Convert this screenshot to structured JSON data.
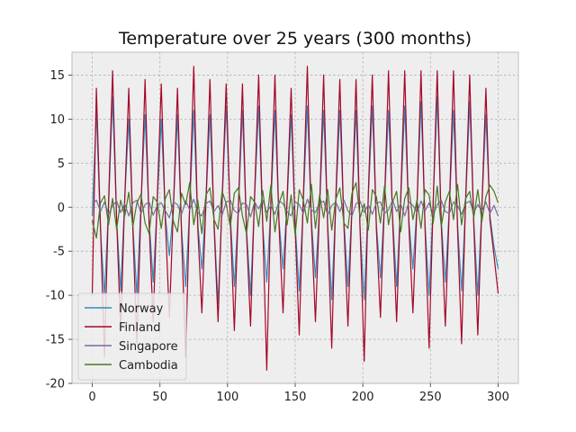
{
  "chart_data": {
    "type": "line",
    "title": "Temperature over 25 years (300 months)",
    "xlabel": "",
    "ylabel": "",
    "xlim": [
      -15,
      315
    ],
    "ylim": [
      -20,
      17.6
    ],
    "x_ticks": [
      0,
      50,
      100,
      150,
      200,
      250,
      300
    ],
    "y_ticks": [
      -20,
      -15,
      -10,
      -5,
      0,
      5,
      10,
      15
    ],
    "grid": true,
    "legend_position": "lower-left",
    "series": [
      {
        "name": "Norway",
        "color": "#348abd",
        "x": [
          0,
          3,
          6,
          9,
          12,
          15,
          18,
          21,
          24,
          27,
          30,
          33,
          36,
          39,
          42,
          45,
          48,
          51,
          54,
          57,
          60,
          63,
          66,
          69,
          72,
          75,
          78,
          81,
          84,
          87,
          90,
          93,
          96,
          99,
          102,
          105,
          108,
          111,
          114,
          117,
          120,
          123,
          126,
          129,
          132,
          135,
          138,
          141,
          144,
          147,
          150,
          153,
          156,
          159,
          162,
          165,
          168,
          171,
          174,
          177,
          180,
          183,
          186,
          189,
          192,
          195,
          198,
          201,
          204,
          207,
          210,
          213,
          216,
          219,
          222,
          225,
          228,
          231,
          234,
          237,
          240,
          243,
          246,
          249,
          252,
          255,
          258,
          261,
          264,
          267,
          270,
          273,
          276,
          279,
          282,
          285,
          288,
          291,
          294,
          297,
          300
        ],
        "y": [
          -1.0,
          11.0,
          -2.5,
          -10.0,
          0.0,
          12.5,
          -1.5,
          -9.5,
          1.0,
          10.0,
          -2.0,
          -10.0,
          0.5,
          10.5,
          -1.5,
          -8.5,
          0.5,
          10.0,
          -1.0,
          -5.5,
          0.0,
          10.5,
          -2.5,
          -9.0,
          0.0,
          11.0,
          -2.0,
          -7.0,
          0.5,
          10.5,
          -1.5,
          -11.0,
          0.5,
          11.5,
          -1.0,
          -9.0,
          0.0,
          11.0,
          -2.5,
          -10.0,
          1.0,
          11.5,
          -2.0,
          -8.5,
          0.0,
          11.0,
          -1.5,
          -7.0,
          0.5,
          10.5,
          -2.0,
          -9.5,
          0.5,
          11.5,
          -1.5,
          -8.0,
          0.0,
          11.0,
          -2.0,
          -10.5,
          0.5,
          11.0,
          -1.5,
          -9.0,
          0.0,
          11.0,
          -2.5,
          -10.5,
          1.0,
          11.5,
          -2.0,
          -8.0,
          0.5,
          11.0,
          -1.0,
          -9.0,
          0.5,
          11.5,
          -1.5,
          -7.0,
          0.0,
          12.0,
          -2.0,
          -10.0,
          0.5,
          12.5,
          -1.5,
          -8.5,
          0.0,
          11.0,
          -2.0,
          -9.5,
          0.5,
          12.0,
          -1.5,
          -10.0,
          0.0,
          10.5,
          -1.0,
          -4.5,
          -7.0
        ],
        "stroke_width": 1.0
      },
      {
        "name": "Finland",
        "color": "#a60628",
        "x": [
          0,
          3,
          6,
          9,
          12,
          15,
          18,
          21,
          24,
          27,
          30,
          33,
          36,
          39,
          42,
          45,
          48,
          51,
          54,
          57,
          60,
          63,
          66,
          69,
          72,
          75,
          78,
          81,
          84,
          87,
          90,
          93,
          96,
          99,
          102,
          105,
          108,
          111,
          114,
          117,
          120,
          123,
          126,
          129,
          132,
          135,
          138,
          141,
          144,
          147,
          150,
          153,
          156,
          159,
          162,
          165,
          168,
          171,
          174,
          177,
          180,
          183,
          186,
          189,
          192,
          195,
          198,
          201,
          204,
          207,
          210,
          213,
          216,
          219,
          222,
          225,
          228,
          231,
          234,
          237,
          240,
          243,
          246,
          249,
          252,
          255,
          258,
          261,
          264,
          267,
          270,
          273,
          276,
          279,
          282,
          285,
          288,
          291,
          294,
          297,
          300
        ],
        "y": [
          -10.0,
          13.5,
          -2.0,
          -17.0,
          0.5,
          15.5,
          -1.5,
          -14.0,
          1.0,
          13.5,
          -2.5,
          -15.5,
          0.0,
          14.5,
          -2.0,
          -13.0,
          1.0,
          14.0,
          -1.5,
          -12.5,
          0.0,
          13.5,
          -3.0,
          -17.0,
          0.5,
          16.0,
          -2.5,
          -12.0,
          0.5,
          14.5,
          -2.0,
          -13.0,
          1.0,
          14.0,
          -1.5,
          -14.0,
          0.0,
          14.0,
          -3.0,
          -13.5,
          1.5,
          15.0,
          -2.0,
          -18.5,
          0.5,
          15.0,
          -2.0,
          -12.0,
          1.0,
          13.5,
          -2.5,
          -14.5,
          1.0,
          16.0,
          -2.0,
          -13.0,
          0.0,
          15.0,
          -2.5,
          -16.0,
          1.0,
          14.5,
          -2.0,
          -13.5,
          0.0,
          14.5,
          -2.5,
          -17.5,
          1.5,
          15.0,
          -2.5,
          -12.5,
          0.5,
          15.5,
          -1.5,
          -13.0,
          1.0,
          15.5,
          -2.0,
          -12.0,
          0.0,
          15.5,
          -2.5,
          -16.0,
          0.5,
          15.5,
          -2.0,
          -13.5,
          0.0,
          15.5,
          -2.5,
          -15.5,
          1.0,
          15.0,
          -2.0,
          -14.5,
          0.0,
          13.5,
          -1.5,
          -5.5,
          -9.8
        ],
        "stroke_width": 1.2
      },
      {
        "name": "Singapore",
        "color": "#7a68a6",
        "x": [
          0,
          3,
          6,
          9,
          12,
          15,
          18,
          21,
          24,
          27,
          30,
          33,
          36,
          39,
          42,
          45,
          48,
          51,
          54,
          57,
          60,
          63,
          66,
          69,
          72,
          75,
          78,
          81,
          84,
          87,
          90,
          93,
          96,
          99,
          102,
          105,
          108,
          111,
          114,
          117,
          120,
          123,
          126,
          129,
          132,
          135,
          138,
          141,
          144,
          147,
          150,
          153,
          156,
          159,
          162,
          165,
          168,
          171,
          174,
          177,
          180,
          183,
          186,
          189,
          192,
          195,
          198,
          201,
          204,
          207,
          210,
          213,
          216,
          219,
          222,
          225,
          228,
          231,
          234,
          237,
          240,
          243,
          246,
          249,
          252,
          255,
          258,
          261,
          264,
          267,
          270,
          273,
          276,
          279,
          282,
          285,
          288,
          291,
          294,
          297,
          300
        ],
        "y": [
          0.3,
          0.8,
          -0.5,
          0.6,
          -0.8,
          0.2,
          0.7,
          -0.6,
          0.4,
          -1.0,
          0.5,
          0.8,
          -0.7,
          0.3,
          0.6,
          -0.9,
          0.2,
          0.5,
          -0.4,
          -1.2,
          0.6,
          0.3,
          -0.8,
          0.7,
          -0.3,
          0.9,
          -0.6,
          -1.0,
          0.4,
          0.7,
          -0.5,
          0.2,
          -0.9,
          0.6,
          0.8,
          -0.4,
          -0.7,
          0.5,
          0.3,
          -1.1,
          0.6,
          -0.2,
          0.8,
          -0.6,
          0.2,
          -0.8,
          0.7,
          0.4,
          -0.5,
          -1.0,
          0.6,
          0.3,
          -0.7,
          0.9,
          -0.3,
          -0.6,
          0.5,
          0.7,
          -0.9,
          0.2,
          0.6,
          -0.5,
          0.8,
          -0.4,
          -1.0,
          0.4,
          0.7,
          -0.6,
          0.3,
          -0.8,
          0.5,
          0.6,
          -0.7,
          -0.3,
          0.8,
          -0.5,
          0.4,
          -1.0,
          0.6,
          0.2,
          -0.6,
          0.7,
          -0.4,
          0.5,
          -0.9,
          0.3,
          0.8,
          -0.5,
          -0.7,
          0.6,
          0.2,
          -0.8,
          0.4,
          0.7,
          -0.6,
          0.3,
          -0.4,
          0.6,
          -0.7,
          0.2,
          -1.0
        ],
        "stroke_width": 1.2
      },
      {
        "name": "Cambodia",
        "color": "#467821",
        "x": [
          0,
          3,
          6,
          9,
          12,
          15,
          18,
          21,
          24,
          27,
          30,
          33,
          36,
          39,
          42,
          45,
          48,
          51,
          54,
          57,
          60,
          63,
          66,
          69,
          72,
          75,
          78,
          81,
          84,
          87,
          90,
          93,
          96,
          99,
          102,
          105,
          108,
          111,
          114,
          117,
          120,
          123,
          126,
          129,
          132,
          135,
          138,
          141,
          144,
          147,
          150,
          153,
          156,
          159,
          162,
          165,
          168,
          171,
          174,
          177,
          180,
          183,
          186,
          189,
          192,
          195,
          198,
          201,
          204,
          207,
          210,
          213,
          216,
          219,
          222,
          225,
          228,
          231,
          234,
          237,
          240,
          243,
          246,
          249,
          252,
          255,
          258,
          261,
          264,
          267,
          270,
          273,
          276,
          279,
          282,
          285,
          288,
          291,
          294,
          297,
          300
        ],
        "y": [
          -1.5,
          -3.5,
          0.5,
          1.3,
          -2.0,
          1.0,
          -2.5,
          0.8,
          -1.0,
          1.7,
          -2.2,
          0.5,
          1.5,
          -1.8,
          -3.0,
          1.2,
          0.6,
          -2.4,
          1.0,
          2.0,
          -1.6,
          -2.8,
          1.6,
          0.3,
          2.8,
          -2.0,
          0.8,
          -3.0,
          1.4,
          2.2,
          -1.4,
          -2.5,
          1.8,
          0.4,
          -2.2,
          1.6,
          2.2,
          -1.0,
          -3.0,
          1.2,
          0.6,
          -2.2,
          1.9,
          -1.6,
          2.5,
          -2.8,
          0.4,
          1.8,
          -2.0,
          1.4,
          -3.2,
          2.0,
          0.8,
          -1.8,
          2.6,
          -2.4,
          1.4,
          -1.2,
          2.0,
          -2.6,
          0.9,
          2.2,
          -1.8,
          -2.4,
          1.6,
          2.8,
          -1.2,
          0.4,
          -2.6,
          2.0,
          1.2,
          -1.8,
          2.4,
          -2.0,
          0.6,
          1.8,
          -2.8,
          1.0,
          2.2,
          -1.4,
          0.8,
          -2.4,
          2.0,
          1.4,
          -1.8,
          2.4,
          -2.2,
          0.6,
          1.8,
          -1.4,
          2.6,
          -2.0,
          1.0,
          1.8,
          -1.2,
          2.0,
          -1.6,
          1.2,
          2.5,
          1.8,
          0.5
        ],
        "stroke_width": 1.2
      }
    ]
  }
}
